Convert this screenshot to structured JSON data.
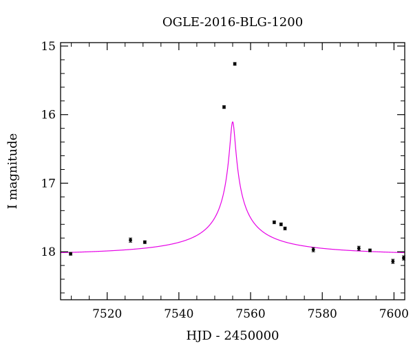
{
  "chart_data": {
    "type": "scatter",
    "title": "OGLE-2016-BLG-1200",
    "xlabel": "HJD - 2450000",
    "ylabel": "I magnitude",
    "xlim": [
      7507,
      7603
    ],
    "ylim": [
      18.7,
      14.95
    ],
    "y_inverted": true,
    "grid": false,
    "x_ticks": [
      7520,
      7540,
      7560,
      7580,
      7600
    ],
    "y_ticks": [
      15,
      16,
      17,
      18
    ],
    "point_color": "#000000",
    "curve_color": "#e600e6",
    "series": [
      {
        "kind": "points",
        "points": [
          {
            "x": 7509.8,
            "y": 18.03,
            "err": 0.02
          },
          {
            "x": 7526.5,
            "y": 17.83,
            "err": 0.03
          },
          {
            "x": 7530.5,
            "y": 17.86,
            "err": 0.02
          },
          {
            "x": 7552.6,
            "y": 15.89,
            "err": 0.02
          },
          {
            "x": 7555.6,
            "y": 15.26,
            "err": 0.02
          },
          {
            "x": 7566.6,
            "y": 17.57,
            "err": 0.02
          },
          {
            "x": 7568.5,
            "y": 17.6,
            "err": 0.02
          },
          {
            "x": 7569.6,
            "y": 17.66,
            "err": 0.02
          },
          {
            "x": 7577.5,
            "y": 17.97,
            "err": 0.03
          },
          {
            "x": 7590.2,
            "y": 17.95,
            "err": 0.03
          },
          {
            "x": 7593.3,
            "y": 17.98,
            "err": 0.02
          },
          {
            "x": 7599.7,
            "y": 18.14,
            "err": 0.03
          },
          {
            "x": 7602.7,
            "y": 18.09,
            "err": 0.03
          }
        ]
      },
      {
        "kind": "model-curve",
        "model": "point-lens",
        "t0": 7555.0,
        "u0": 0.0105,
        "tE": 67.0,
        "baseline_mag": 18.05,
        "blend_fraction": 0.053
      }
    ]
  }
}
